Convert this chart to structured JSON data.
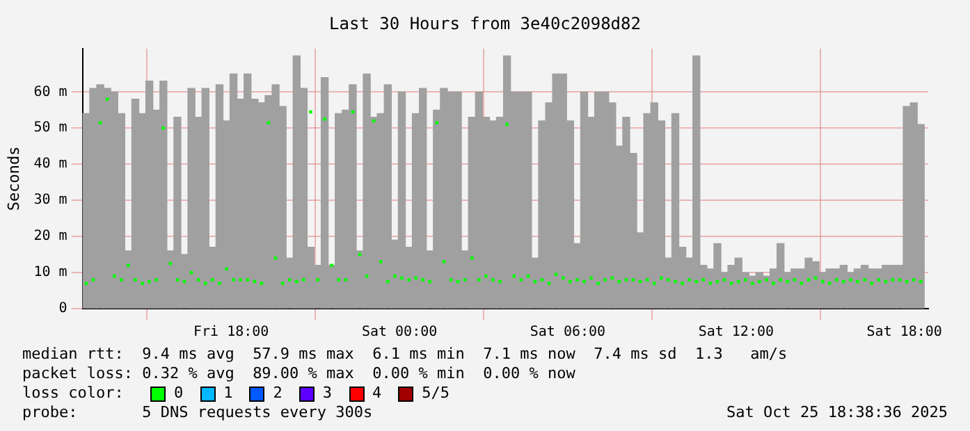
{
  "chart_data": {
    "type": "bar",
    "title": "Last 30 Hours from 3e40c2098d82",
    "ylabel": "Seconds",
    "x": [
      "2025-10-24T12:50",
      "2025-10-24T13:05",
      "2025-10-24T13:20",
      "2025-10-24T13:35",
      "2025-10-24T13:50",
      "2025-10-24T14:05",
      "2025-10-24T14:20",
      "2025-10-24T14:35",
      "2025-10-24T14:50",
      "2025-10-24T15:05",
      "2025-10-24T15:20",
      "2025-10-24T15:35",
      "2025-10-24T15:50",
      "2025-10-24T16:05",
      "2025-10-24T16:20",
      "2025-10-24T16:35",
      "2025-10-24T16:50",
      "2025-10-24T17:05",
      "2025-10-24T17:20",
      "2025-10-24T17:35",
      "2025-10-24T17:50",
      "2025-10-24T18:05",
      "2025-10-24T18:20",
      "2025-10-24T18:35",
      "2025-10-24T18:50",
      "2025-10-24T19:05",
      "2025-10-24T19:20",
      "2025-10-24T19:35",
      "2025-10-24T19:50",
      "2025-10-24T20:05",
      "2025-10-24T20:20",
      "2025-10-24T20:35",
      "2025-10-24T20:50",
      "2025-10-24T21:05",
      "2025-10-24T21:20",
      "2025-10-24T21:35",
      "2025-10-24T21:50",
      "2025-10-24T22:05",
      "2025-10-24T22:20",
      "2025-10-24T22:35",
      "2025-10-24T22:50",
      "2025-10-24T23:05",
      "2025-10-24T23:20",
      "2025-10-24T23:35",
      "2025-10-24T23:50",
      "2025-10-25T00:05",
      "2025-10-25T00:20",
      "2025-10-25T00:35",
      "2025-10-25T00:50",
      "2025-10-25T01:05",
      "2025-10-25T01:20",
      "2025-10-25T01:35",
      "2025-10-25T01:50",
      "2025-10-25T02:05",
      "2025-10-25T02:20",
      "2025-10-25T02:35",
      "2025-10-25T02:50",
      "2025-10-25T03:05",
      "2025-10-25T03:20",
      "2025-10-25T03:35",
      "2025-10-25T03:50",
      "2025-10-25T04:05",
      "2025-10-25T04:20",
      "2025-10-25T04:35",
      "2025-10-25T04:50",
      "2025-10-25T05:05",
      "2025-10-25T05:20",
      "2025-10-25T05:35",
      "2025-10-25T05:50",
      "2025-10-25T06:05",
      "2025-10-25T06:20",
      "2025-10-25T06:35",
      "2025-10-25T06:50",
      "2025-10-25T07:05",
      "2025-10-25T07:20",
      "2025-10-25T07:35",
      "2025-10-25T07:50",
      "2025-10-25T08:05",
      "2025-10-25T08:20",
      "2025-10-25T08:35",
      "2025-10-25T08:50",
      "2025-10-25T09:05",
      "2025-10-25T09:20",
      "2025-10-25T09:35",
      "2025-10-25T09:50",
      "2025-10-25T10:05",
      "2025-10-25T10:20",
      "2025-10-25T10:35",
      "2025-10-25T10:50",
      "2025-10-25T11:05",
      "2025-10-25T11:20",
      "2025-10-25T11:35",
      "2025-10-25T11:50",
      "2025-10-25T12:05",
      "2025-10-25T12:20",
      "2025-10-25T12:35",
      "2025-10-25T12:50",
      "2025-10-25T13:05",
      "2025-10-25T13:20",
      "2025-10-25T13:35",
      "2025-10-25T13:50",
      "2025-10-25T14:05",
      "2025-10-25T14:20",
      "2025-10-25T14:35",
      "2025-10-25T14:50",
      "2025-10-25T15:05",
      "2025-10-25T15:20",
      "2025-10-25T15:35",
      "2025-10-25T15:50",
      "2025-10-25T16:05",
      "2025-10-25T16:20",
      "2025-10-25T16:35",
      "2025-10-25T16:50",
      "2025-10-25T17:05",
      "2025-10-25T17:20",
      "2025-10-25T17:35",
      "2025-10-25T17:50",
      "2025-10-25T18:05",
      "2025-10-25T18:20",
      "2025-10-25T18:35"
    ],
    "series": [
      {
        "color": "#a0a0a0",
        "values": [
          54,
          61,
          62,
          61,
          60,
          54,
          16,
          58,
          54,
          63,
          55,
          63,
          16,
          53,
          15,
          61,
          53,
          61,
          17,
          62,
          52,
          65,
          58,
          65,
          58,
          57,
          59,
          62,
          56,
          14,
          70,
          61,
          17,
          12,
          64,
          12,
          54,
          55,
          62,
          16,
          65,
          53,
          54,
          62,
          19,
          60,
          17,
          54,
          61,
          16,
          55,
          61,
          60,
          60,
          16,
          53,
          60,
          53,
          52,
          53,
          70,
          60,
          60,
          60,
          14,
          52,
          57,
          65,
          65,
          52,
          18,
          60,
          53,
          60,
          60,
          57,
          45,
          53,
          43,
          21,
          54,
          57,
          52,
          14,
          54,
          17,
          14,
          70,
          12,
          11,
          18,
          10,
          12,
          14,
          10,
          9,
          10,
          9,
          11,
          18,
          10,
          11,
          11,
          14,
          13,
          10,
          11,
          11,
          12,
          10,
          11,
          12,
          11,
          11,
          12,
          12,
          12,
          56,
          57,
          51
        ]
      },
      {
        "type": "scatter",
        "name": "0",
        "color": "#00ff00",
        "values": [
          7,
          8,
          51.5,
          58,
          9,
          8,
          12,
          8,
          7,
          7.5,
          8,
          50,
          12.5,
          8,
          7.5,
          10,
          8,
          7,
          8,
          7,
          11,
          8,
          8,
          8,
          7.5,
          7,
          51.5,
          14,
          7,
          8,
          7.5,
          8,
          54.5,
          8,
          52.5,
          12,
          8,
          8,
          54.5,
          15,
          9,
          52,
          13,
          7.5,
          9,
          8.5,
          8,
          8.5,
          8,
          7.5,
          51.5,
          13,
          8,
          7.5,
          8,
          14,
          8,
          9,
          8,
          7.5,
          51,
          9,
          8,
          9,
          7.5,
          8,
          7,
          9.5,
          8.5,
          7.5,
          8,
          7.5,
          8.5,
          7,
          8,
          8.5,
          7.5,
          8,
          8,
          7.5,
          8,
          7,
          8.5,
          8,
          7.5,
          7,
          8,
          7.5,
          8,
          7,
          7.5,
          8,
          7,
          7.5,
          8,
          7,
          7.5,
          8,
          7,
          8,
          7.5,
          8,
          7,
          8,
          8.5,
          7.5,
          7,
          8,
          7.5,
          8,
          7.5,
          8,
          7,
          8,
          7.5,
          8,
          8,
          7.5,
          8,
          7.5
        ]
      },
      {
        "type": "scatter",
        "name": "1",
        "color": "#00b8ff",
        "values": [
          null,
          null,
          null,
          null,
          null,
          null,
          null,
          null,
          null,
          null,
          null,
          null,
          null,
          null,
          null,
          null,
          null,
          null,
          null,
          null,
          null,
          null,
          null,
          null,
          null,
          null,
          null,
          null,
          null,
          null,
          null,
          null,
          null,
          null,
          null,
          null,
          null,
          null,
          null,
          null,
          null,
          null,
          null,
          null,
          null,
          null,
          null,
          null,
          null,
          null,
          null,
          null,
          null,
          null,
          null,
          null,
          null,
          null,
          null,
          null,
          null,
          null,
          null,
          null,
          null,
          null,
          null,
          null,
          null,
          null,
          null,
          null,
          null,
          null,
          null,
          null,
          null,
          null,
          null,
          null,
          null,
          null,
          null,
          null,
          null,
          null,
          null,
          null,
          null,
          null,
          null,
          null,
          null,
          null,
          null,
          null,
          null,
          null,
          null,
          null,
          null,
          null,
          null,
          null,
          null,
          null,
          null,
          null,
          null,
          null,
          null,
          null,
          null,
          null,
          null,
          null,
          null,
          null,
          null,
          null
        ]
      },
      {
        "type": "scatter",
        "name": "2",
        "color": "#0059ff",
        "values": [
          null,
          null,
          null,
          null,
          null,
          null,
          null,
          null,
          null,
          null,
          null,
          null,
          null,
          null,
          null,
          null,
          null,
          null,
          null,
          null,
          null,
          null,
          null,
          null,
          null,
          null,
          null,
          null,
          null,
          null,
          null,
          null,
          null,
          null,
          null,
          null,
          null,
          null,
          null,
          null,
          null,
          null,
          null,
          null,
          null,
          null,
          null,
          null,
          null,
          null,
          null,
          null,
          null,
          null,
          null,
          null,
          null,
          null,
          null,
          null,
          null,
          null,
          null,
          null,
          null,
          null,
          null,
          null,
          null,
          null,
          null,
          null,
          null,
          null,
          null,
          null,
          null,
          null,
          null,
          null,
          null,
          null,
          null,
          null,
          null,
          null,
          null,
          null,
          null,
          null,
          null,
          null,
          null,
          null,
          null,
          null,
          null,
          null,
          null,
          null,
          null,
          null,
          null,
          null,
          null,
          null,
          null,
          null,
          null,
          null,
          null,
          null,
          null,
          null,
          null,
          null,
          null,
          null,
          null,
          null
        ]
      },
      {
        "type": "scatter",
        "name": "3",
        "color": "#5e00ff",
        "values": [
          null,
          null,
          null,
          null,
          null,
          null,
          null,
          null,
          null,
          null,
          null,
          null,
          null,
          null,
          null,
          null,
          null,
          null,
          null,
          null,
          null,
          null,
          null,
          null,
          null,
          null,
          null,
          null,
          null,
          null,
          null,
          null,
          null,
          null,
          null,
          null,
          null,
          null,
          null,
          null,
          null,
          null,
          null,
          null,
          null,
          null,
          null,
          null,
          null,
          null,
          null,
          null,
          null,
          null,
          null,
          null,
          null,
          null,
          null,
          null,
          null,
          null,
          null,
          null,
          null,
          null,
          null,
          null,
          null,
          null,
          null,
          null,
          null,
          null,
          null,
          null,
          null,
          null,
          null,
          null,
          null,
          null,
          null,
          null,
          null,
          null,
          null,
          null,
          null,
          null,
          null,
          null,
          null,
          null,
          null,
          null,
          null,
          null,
          null,
          null,
          null,
          null,
          null,
          null,
          null,
          null,
          null,
          null,
          null,
          null,
          null,
          null,
          null,
          null,
          null,
          null,
          null,
          null,
          null,
          null
        ]
      },
      {
        "type": "scatter",
        "name": "4",
        "color": "#ff0000",
        "values": [
          null,
          null,
          null,
          null,
          null,
          null,
          null,
          null,
          null,
          null,
          null,
          null,
          null,
          null,
          null,
          null,
          null,
          null,
          null,
          null,
          null,
          null,
          null,
          null,
          null,
          null,
          null,
          null,
          null,
          null,
          null,
          null,
          null,
          null,
          null,
          null,
          null,
          null,
          null,
          null,
          null,
          null,
          null,
          null,
          null,
          null,
          null,
          null,
          null,
          null,
          null,
          null,
          null,
          null,
          null,
          null,
          null,
          null,
          null,
          null,
          null,
          null,
          null,
          null,
          null,
          null,
          null,
          null,
          null,
          null,
          null,
          null,
          null,
          null,
          null,
          null,
          null,
          null,
          null,
          null,
          null,
          null,
          null,
          null,
          null,
          null,
          null,
          null,
          null,
          null,
          null,
          null,
          null,
          null,
          null,
          null,
          null,
          null,
          null,
          null,
          null,
          null,
          null,
          null,
          null,
          null,
          null,
          null,
          null,
          null,
          null,
          null,
          null,
          null,
          null,
          null,
          null,
          null,
          null,
          null
        ]
      },
      {
        "type": "scatter",
        "name": "5/5",
        "color": "#a00000",
        "values": [
          null,
          null,
          null,
          null,
          null,
          null,
          null,
          null,
          null,
          null,
          null,
          null,
          null,
          null,
          null,
          null,
          null,
          null,
          null,
          null,
          null,
          null,
          null,
          null,
          null,
          null,
          null,
          null,
          null,
          null,
          null,
          null,
          null,
          null,
          null,
          null,
          null,
          null,
          null,
          null,
          null,
          null,
          null,
          null,
          null,
          null,
          null,
          null,
          null,
          null,
          null,
          null,
          null,
          null,
          null,
          null,
          null,
          null,
          null,
          null,
          null,
          null,
          null,
          null,
          null,
          null,
          null,
          null,
          null,
          null,
          null,
          null,
          null,
          null,
          null,
          null,
          null,
          null,
          null,
          null,
          null,
          null,
          null,
          null,
          null,
          null,
          null,
          null,
          null,
          null,
          null,
          null,
          null,
          null,
          null,
          null,
          null,
          null,
          null,
          null,
          null,
          null,
          null,
          null,
          null,
          null,
          null,
          null,
          null,
          null,
          null,
          null,
          null,
          null,
          null,
          null,
          null,
          null,
          null,
          null
        ]
      }
    ],
    "xlim": [
      "2025-10-24T12:42",
      "2025-10-25T18:51"
    ],
    "xticks": [
      {
        "value": "2025-10-24T18:00",
        "label": "Fri 18:00"
      },
      {
        "value": "2025-10-25T00:00",
        "label": "Sat 00:00"
      },
      {
        "value": "2025-10-25T06:00",
        "label": "Sat 06:00"
      },
      {
        "value": "2025-10-25T12:00",
        "label": "Sat 12:00"
      },
      {
        "value": "2025-10-25T18:00",
        "label": "Sat 18:00"
      }
    ],
    "ylim": [
      0,
      72
    ],
    "yticks": [
      0,
      {
        "value": 10,
        "label": "10 m"
      },
      {
        "value": 20,
        "label": "20 m"
      },
      {
        "value": 30,
        "label": "30 m"
      },
      {
        "value": 40,
        "label": "40 m"
      },
      {
        "value": 50,
        "label": "50 m"
      },
      {
        "value": 60,
        "label": "60 m"
      }
    ],
    "grid": true,
    "marker": "square",
    "legend": "bottom",
    "legend_title": "loss color:",
    "annotations": [
      "median rtt:  9.4 ms avg  57.9 ms max  6.1 ms min  7.1 ms now  7.4 ms sd  1.3   am/s",
      "packet loss: 0.32 % avg  89.00 % max  0.00 % min  0.00 % now",
      "probe:       5 DNS requests every 300s",
      "Sat Oct 25 18:38:36 2025"
    ]
  }
}
